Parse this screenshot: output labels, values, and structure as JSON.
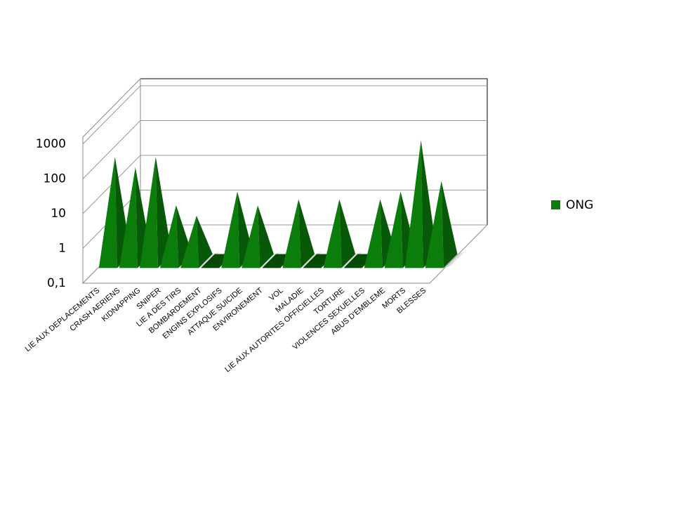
{
  "chart_data": {
    "type": "pyramid3d",
    "categories": [
      "LIE AUX DEPLACEMENTS",
      "CRASH AERIENS",
      "KIDNAPPING",
      "SNIPER",
      "LIE A DES TIRS",
      "BOMBARDEMENT",
      "ENGINS EXPLOSIFS",
      "ATTAQUE SUICIDE",
      "ENVIRONEMENT",
      "VOL",
      "MALADIE",
      "LIE AUX AUTORITES OFFICIELLES",
      "TORTURE",
      "VIOLENCES SEXUELLES",
      "ABUS D'EMBLEME",
      "MORTS",
      "BLESSES"
    ],
    "series": [
      {
        "name": "ONG",
        "color": "#0b7d0b",
        "values": [
          100,
          50,
          100,
          4,
          2,
          0,
          10,
          4,
          0,
          6,
          0,
          6,
          0,
          6,
          10,
          300,
          20
        ]
      }
    ],
    "ylim": [
      0.1,
      1000
    ],
    "yticks": [
      {
        "value": 0.1,
        "label": "0,1"
      },
      1,
      10,
      100,
      1000
    ],
    "log_scale": true,
    "grid": true,
    "legend": "right"
  }
}
